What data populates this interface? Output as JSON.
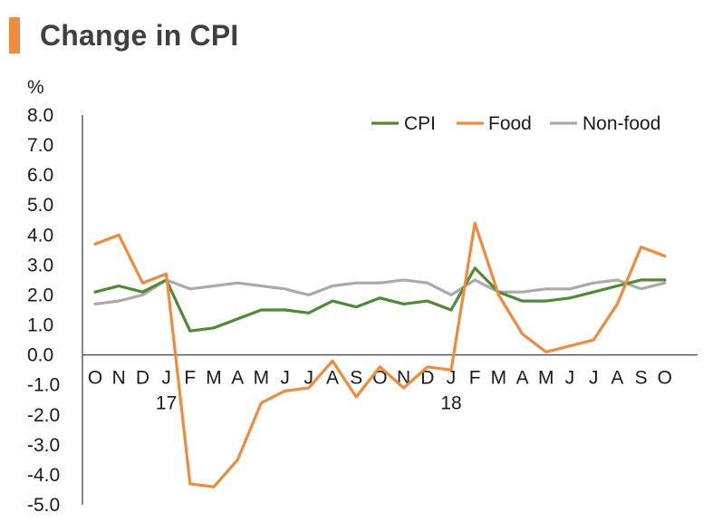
{
  "title": "Change in CPI",
  "colors": {
    "accent": "#f08a3c",
    "cpi": "#4f8a34",
    "food": "#f08a3c",
    "nonfood": "#aaaaaa"
  },
  "chart_data": {
    "type": "line",
    "title": "Change in CPI",
    "ylabel": "%",
    "xlabel": "",
    "ylim": [
      -5.0,
      8.0
    ],
    "yticks": [
      "8.0",
      "7.0",
      "6.0",
      "5.0",
      "4.0",
      "3.0",
      "2.0",
      "1.0",
      "0.0",
      "-1.0",
      "-2.0",
      "-3.0",
      "-4.0",
      "-5.0"
    ],
    "ytick_values": [
      8,
      7,
      6,
      5,
      4,
      3,
      2,
      1,
      0,
      -1,
      -2,
      -3,
      -4,
      -5
    ],
    "categories": [
      "O",
      "N",
      "D",
      "J",
      "F",
      "M",
      "A",
      "M",
      "J",
      "J",
      "A",
      "S",
      "O",
      "N",
      "D",
      "J",
      "F",
      "M",
      "A",
      "M",
      "J",
      "J",
      "A",
      "S",
      "O"
    ],
    "year_labels": [
      {
        "index": 3,
        "label": "17"
      },
      {
        "index": 15,
        "label": "18"
      }
    ],
    "legend_position": "top-right",
    "grid": false,
    "series": [
      {
        "name": "CPI",
        "color": "#4f8a34",
        "values": [
          2.1,
          2.3,
          2.1,
          2.5,
          0.8,
          0.9,
          1.2,
          1.5,
          1.5,
          1.4,
          1.8,
          1.6,
          1.9,
          1.7,
          1.8,
          1.5,
          2.9,
          2.1,
          1.8,
          1.8,
          1.9,
          2.1,
          2.3,
          2.5,
          2.5
        ]
      },
      {
        "name": "Food",
        "color": "#f08a3c",
        "values": [
          3.7,
          4.0,
          2.4,
          2.7,
          -4.3,
          -4.4,
          -3.5,
          -1.6,
          -1.2,
          -1.1,
          -0.2,
          -1.4,
          -0.4,
          -1.1,
          -0.4,
          -0.5,
          4.4,
          2.0,
          0.7,
          0.1,
          0.3,
          0.5,
          1.7,
          3.6,
          3.3
        ]
      },
      {
        "name": "Non-food",
        "color": "#aaaaaa",
        "values": [
          1.7,
          1.8,
          2.0,
          2.5,
          2.2,
          2.3,
          2.4,
          2.3,
          2.2,
          2.0,
          2.3,
          2.4,
          2.4,
          2.5,
          2.4,
          2.0,
          2.5,
          2.1,
          2.1,
          2.2,
          2.2,
          2.4,
          2.5,
          2.2,
          2.4
        ]
      }
    ]
  }
}
